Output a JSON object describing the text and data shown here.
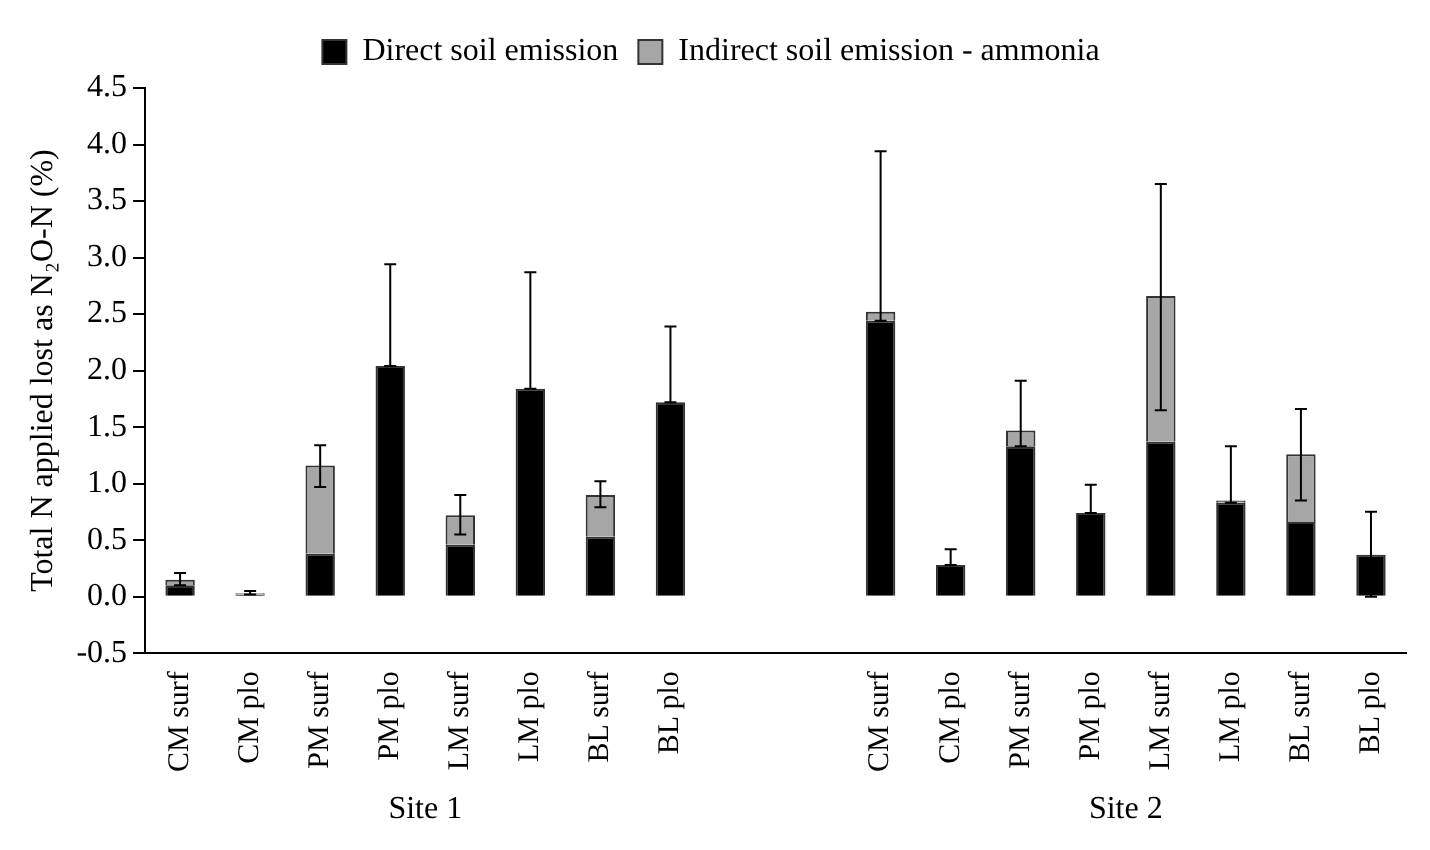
{
  "chart_data": {
    "type": "bar",
    "ylabel": "Total N applied lost as N₂O-N (%)",
    "categories": [
      "CM surf",
      "CM plo",
      "PM surf",
      "PM plo",
      "LM surf",
      "LM plo",
      "BL surf",
      "BL plo",
      null,
      null,
      "CM surf",
      "CM plo",
      "PM surf",
      "PM plo",
      "LM surf",
      "LM plo",
      "BL surf",
      "BL plo"
    ],
    "stacked": true,
    "series": [
      {
        "name": "Direct soil emission",
        "color": "#000000",
        "values": [
          0.1,
          0.02,
          0.38,
          2.04,
          0.46,
          1.84,
          0.53,
          1.72,
          null,
          null,
          2.44,
          0.28,
          1.33,
          0.74,
          1.37,
          0.83,
          0.66,
          0.37
        ],
        "errors": [
          null,
          [
            0.02,
            0.05
          ],
          null,
          [
            2.04,
            2.94
          ],
          null,
          [
            1.84,
            2.87
          ],
          null,
          [
            1.72,
            2.39
          ],
          null,
          null,
          null,
          [
            0.28,
            0.42
          ],
          null,
          [
            0.74,
            0.99
          ],
          null,
          null,
          null,
          [
            0,
            0.75
          ]
        ]
      },
      {
        "name": "Indirect soil emission - ammonia",
        "color": "#a6a6a6",
        "values": [
          0.05,
          0.01,
          0.78,
          null,
          0.26,
          null,
          0.37,
          null,
          null,
          null,
          0.08,
          null,
          0.14,
          null,
          1.29,
          0.02,
          0.6,
          null
        ],
        "errors": [
          [
            0.1,
            0.21
          ],
          null,
          [
            0.97,
            1.34
          ],
          null,
          [
            0.55,
            0.9
          ],
          null,
          [
            0.79,
            1.02
          ],
          null,
          null,
          null,
          [
            2.44,
            3.94
          ],
          null,
          [
            1.33,
            1.91
          ],
          null,
          [
            1.65,
            3.65
          ],
          [
            0.83,
            1.33
          ],
          [
            0.85,
            1.66
          ],
          null
        ]
      }
    ],
    "ylim": [
      -0.5,
      4.5
    ],
    "yticks": [
      -0.5,
      {
        "value": 0,
        "label": "0.0"
      },
      0.5,
      {
        "value": 1,
        "label": "1.0"
      },
      1.5,
      {
        "value": 2,
        "label": "2.0"
      },
      2.5,
      {
        "value": 3,
        "label": "3.0"
      },
      3.5,
      {
        "value": 4,
        "label": "4.0"
      },
      4.5
    ],
    "grid": false,
    "legend": "top",
    "annotations": [
      "Site 1",
      "Site 2"
    ]
  }
}
